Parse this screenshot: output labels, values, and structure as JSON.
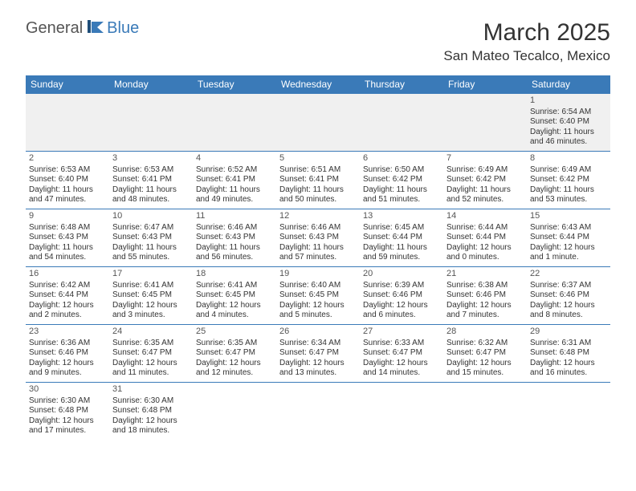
{
  "brand": {
    "part1": "General",
    "part2": "Blue"
  },
  "title": "March 2025",
  "location": "San Mateo Tecalco, Mexico",
  "colors": {
    "header_bg": "#3a7ab8",
    "header_text": "#ffffff",
    "row_border": "#3a7ab8",
    "blank_bg": "#f0f0f0",
    "text": "#333333"
  },
  "day_headers": [
    "Sunday",
    "Monday",
    "Tuesday",
    "Wednesday",
    "Thursday",
    "Friday",
    "Saturday"
  ],
  "weeks": [
    [
      null,
      null,
      null,
      null,
      null,
      null,
      {
        "n": "1",
        "sr": "Sunrise: 6:54 AM",
        "ss": "Sunset: 6:40 PM",
        "dl": "Daylight: 11 hours and 46 minutes."
      }
    ],
    [
      {
        "n": "2",
        "sr": "Sunrise: 6:53 AM",
        "ss": "Sunset: 6:40 PM",
        "dl": "Daylight: 11 hours and 47 minutes."
      },
      {
        "n": "3",
        "sr": "Sunrise: 6:53 AM",
        "ss": "Sunset: 6:41 PM",
        "dl": "Daylight: 11 hours and 48 minutes."
      },
      {
        "n": "4",
        "sr": "Sunrise: 6:52 AM",
        "ss": "Sunset: 6:41 PM",
        "dl": "Daylight: 11 hours and 49 minutes."
      },
      {
        "n": "5",
        "sr": "Sunrise: 6:51 AM",
        "ss": "Sunset: 6:41 PM",
        "dl": "Daylight: 11 hours and 50 minutes."
      },
      {
        "n": "6",
        "sr": "Sunrise: 6:50 AM",
        "ss": "Sunset: 6:42 PM",
        "dl": "Daylight: 11 hours and 51 minutes."
      },
      {
        "n": "7",
        "sr": "Sunrise: 6:49 AM",
        "ss": "Sunset: 6:42 PM",
        "dl": "Daylight: 11 hours and 52 minutes."
      },
      {
        "n": "8",
        "sr": "Sunrise: 6:49 AM",
        "ss": "Sunset: 6:42 PM",
        "dl": "Daylight: 11 hours and 53 minutes."
      }
    ],
    [
      {
        "n": "9",
        "sr": "Sunrise: 6:48 AM",
        "ss": "Sunset: 6:43 PM",
        "dl": "Daylight: 11 hours and 54 minutes."
      },
      {
        "n": "10",
        "sr": "Sunrise: 6:47 AM",
        "ss": "Sunset: 6:43 PM",
        "dl": "Daylight: 11 hours and 55 minutes."
      },
      {
        "n": "11",
        "sr": "Sunrise: 6:46 AM",
        "ss": "Sunset: 6:43 PM",
        "dl": "Daylight: 11 hours and 56 minutes."
      },
      {
        "n": "12",
        "sr": "Sunrise: 6:46 AM",
        "ss": "Sunset: 6:43 PM",
        "dl": "Daylight: 11 hours and 57 minutes."
      },
      {
        "n": "13",
        "sr": "Sunrise: 6:45 AM",
        "ss": "Sunset: 6:44 PM",
        "dl": "Daylight: 11 hours and 59 minutes."
      },
      {
        "n": "14",
        "sr": "Sunrise: 6:44 AM",
        "ss": "Sunset: 6:44 PM",
        "dl": "Daylight: 12 hours and 0 minutes."
      },
      {
        "n": "15",
        "sr": "Sunrise: 6:43 AM",
        "ss": "Sunset: 6:44 PM",
        "dl": "Daylight: 12 hours and 1 minute."
      }
    ],
    [
      {
        "n": "16",
        "sr": "Sunrise: 6:42 AM",
        "ss": "Sunset: 6:44 PM",
        "dl": "Daylight: 12 hours and 2 minutes."
      },
      {
        "n": "17",
        "sr": "Sunrise: 6:41 AM",
        "ss": "Sunset: 6:45 PM",
        "dl": "Daylight: 12 hours and 3 minutes."
      },
      {
        "n": "18",
        "sr": "Sunrise: 6:41 AM",
        "ss": "Sunset: 6:45 PM",
        "dl": "Daylight: 12 hours and 4 minutes."
      },
      {
        "n": "19",
        "sr": "Sunrise: 6:40 AM",
        "ss": "Sunset: 6:45 PM",
        "dl": "Daylight: 12 hours and 5 minutes."
      },
      {
        "n": "20",
        "sr": "Sunrise: 6:39 AM",
        "ss": "Sunset: 6:46 PM",
        "dl": "Daylight: 12 hours and 6 minutes."
      },
      {
        "n": "21",
        "sr": "Sunrise: 6:38 AM",
        "ss": "Sunset: 6:46 PM",
        "dl": "Daylight: 12 hours and 7 minutes."
      },
      {
        "n": "22",
        "sr": "Sunrise: 6:37 AM",
        "ss": "Sunset: 6:46 PM",
        "dl": "Daylight: 12 hours and 8 minutes."
      }
    ],
    [
      {
        "n": "23",
        "sr": "Sunrise: 6:36 AM",
        "ss": "Sunset: 6:46 PM",
        "dl": "Daylight: 12 hours and 9 minutes."
      },
      {
        "n": "24",
        "sr": "Sunrise: 6:35 AM",
        "ss": "Sunset: 6:47 PM",
        "dl": "Daylight: 12 hours and 11 minutes."
      },
      {
        "n": "25",
        "sr": "Sunrise: 6:35 AM",
        "ss": "Sunset: 6:47 PM",
        "dl": "Daylight: 12 hours and 12 minutes."
      },
      {
        "n": "26",
        "sr": "Sunrise: 6:34 AM",
        "ss": "Sunset: 6:47 PM",
        "dl": "Daylight: 12 hours and 13 minutes."
      },
      {
        "n": "27",
        "sr": "Sunrise: 6:33 AM",
        "ss": "Sunset: 6:47 PM",
        "dl": "Daylight: 12 hours and 14 minutes."
      },
      {
        "n": "28",
        "sr": "Sunrise: 6:32 AM",
        "ss": "Sunset: 6:47 PM",
        "dl": "Daylight: 12 hours and 15 minutes."
      },
      {
        "n": "29",
        "sr": "Sunrise: 6:31 AM",
        "ss": "Sunset: 6:48 PM",
        "dl": "Daylight: 12 hours and 16 minutes."
      }
    ],
    [
      {
        "n": "30",
        "sr": "Sunrise: 6:30 AM",
        "ss": "Sunset: 6:48 PM",
        "dl": "Daylight: 12 hours and 17 minutes."
      },
      {
        "n": "31",
        "sr": "Sunrise: 6:30 AM",
        "ss": "Sunset: 6:48 PM",
        "dl": "Daylight: 12 hours and 18 minutes."
      },
      null,
      null,
      null,
      null,
      null
    ]
  ]
}
